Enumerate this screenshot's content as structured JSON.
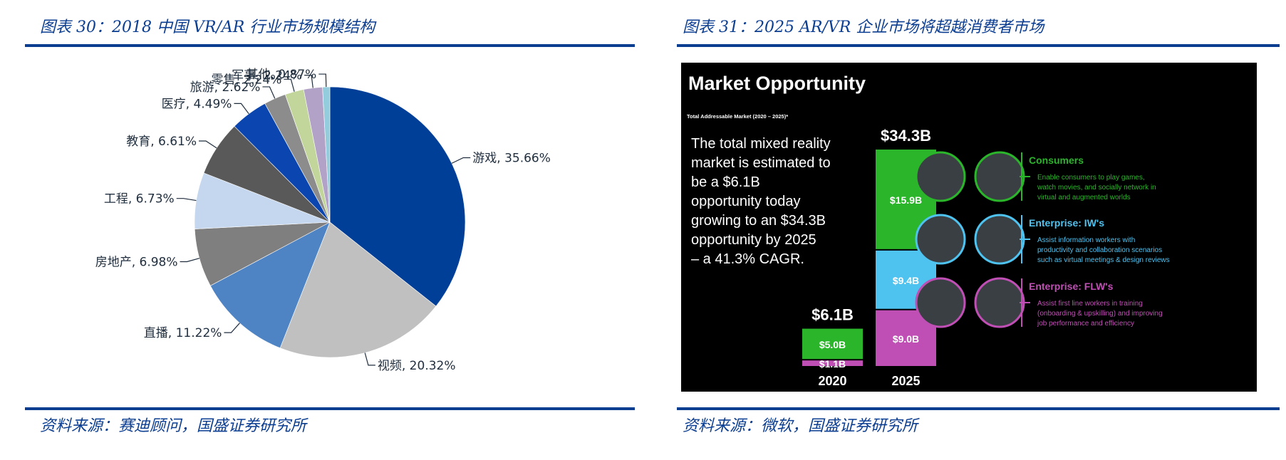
{
  "left": {
    "title": "图表 30：2018 中国 VR/AR 行业市场规模结构",
    "source": "资料来源：赛迪顾问，国盛证券研究所"
  },
  "right": {
    "title": "图表 31：2025 AR/VR 企业市场将超越消费者市场",
    "source": "资料来源：微软，国盛证券研究所",
    "image": {
      "heading": "Market Opportunity",
      "subheading": "Total Addressable Market (2020 – 2025)*",
      "text_lines": [
        "The total mixed reality",
        "market is estimated to",
        "be a $6.1B",
        "opportunity today",
        "growing to an $34.3B",
        "opportunity by 2025",
        "– a 41.3% CAGR."
      ],
      "segments": [
        {
          "name": "Consumers",
          "desc": [
            "Enable consumers to play games,",
            "watch movies, and socially network in",
            "virtual and augmented worlds"
          ],
          "color": "#2bb52b"
        },
        {
          "name": "Enterprise:  IW's",
          "desc": [
            "Assist information workers with",
            "productivity and collaboration scenarios",
            "such as virtual meetings & design reviews"
          ],
          "color": "#4fc3f0"
        },
        {
          "name": "Enterprise:  FLW's",
          "desc": [
            "Assist first line workers in training",
            "(onboarding & upskilling) and improving",
            "job performance and efficiency"
          ],
          "color": "#c04fb5"
        }
      ],
      "bars": [
        {
          "year": "2020",
          "total": "$6.1B",
          "stack": [
            {
              "label": "$1.1B",
              "value": 1.1,
              "color": "#c04fb5"
            },
            {
              "label": "$5.0B",
              "value": 5.0,
              "color": "#2bb52b"
            }
          ]
        },
        {
          "year": "2025",
          "total": "$34.3B",
          "stack": [
            {
              "label": "$9.0B",
              "value": 9.0,
              "color": "#c04fb5"
            },
            {
              "label": "$9.4B",
              "value": 9.4,
              "color": "#4fc3f0"
            },
            {
              "label": "$15.9B",
              "value": 15.9,
              "color": "#2bb52b"
            }
          ]
        }
      ]
    }
  },
  "chart_data": [
    {
      "type": "pie",
      "title": "图表 30：2018 中国 VR/AR 行业市场规模结构",
      "categories": [
        "游戏",
        "视频",
        "直播",
        "房地产",
        "工程",
        "教育",
        "医疗",
        "旅游",
        "零售",
        "军事",
        "其他"
      ],
      "values": [
        35.66,
        20.32,
        11.22,
        6.98,
        6.73,
        6.61,
        4.49,
        2.62,
        2.24,
        2.24,
        0.87
      ],
      "labels": [
        "游戏, 35.66%",
        "视频, 20.32%",
        "直播, 11.22%",
        "房地产, 6.98%",
        "工程, 6.73%",
        "教育, 6.61%",
        "医疗, 4.49%",
        "旅游, 2.62%",
        "零售, 2.24%",
        "军事, 2.24%",
        "其他, 0.87%"
      ],
      "colors": [
        "#003f98",
        "#c0c0c0",
        "#4f84c4",
        "#7f7f7f",
        "#c5d7ee",
        "#595959",
        "#0a45b0",
        "#8c8c8c",
        "#c2d69b",
        "#b3a2c7",
        "#93cddd"
      ]
    },
    {
      "type": "bar",
      "stacked": true,
      "categories": [
        "2020",
        "2025"
      ],
      "totals": [
        6.1,
        34.3
      ],
      "series": [
        {
          "name": "Enterprise:  FLW's",
          "values": [
            1.1,
            9.0
          ]
        },
        {
          "name": "Enterprise:  IW's",
          "values": [
            null,
            9.4
          ]
        },
        {
          "name": "Consumers",
          "values": [
            5.0,
            15.9
          ]
        }
      ]
    }
  ]
}
